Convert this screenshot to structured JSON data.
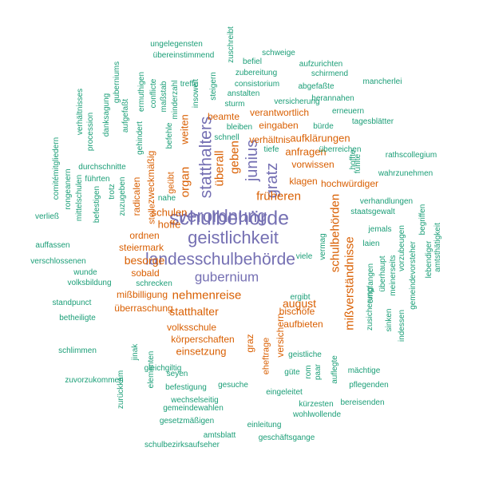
{
  "palette": {
    "teal": "#1b9e77",
    "orange": "#d95f02",
    "purple": "#7570b3"
  },
  "words": [
    {
      "text": "schulbehörde",
      "color": "purple"
    },
    {
      "text": "geistlichkeit",
      "color": "purple"
    },
    {
      "text": "landesschulbehörde",
      "color": "purple"
    },
    {
      "text": "verordnung",
      "color": "purple"
    },
    {
      "text": "gubernium",
      "color": "purple"
    },
    {
      "text": "statthalters",
      "color": "purple"
    },
    {
      "text": "junius",
      "color": "purple"
    },
    {
      "text": "gratz",
      "color": "purple"
    },
    {
      "text": "überall",
      "color": "orange"
    },
    {
      "text": "geben",
      "color": "orange"
    },
    {
      "text": "organ",
      "color": "orange"
    },
    {
      "text": "weiten",
      "color": "orange"
    },
    {
      "text": "früheren",
      "color": "orange"
    },
    {
      "text": "schulbehörden",
      "color": "orange"
    },
    {
      "text": "mißverständnisse",
      "color": "orange"
    },
    {
      "text": "schulen",
      "color": "orange"
    },
    {
      "text": "hoffe",
      "color": "orange"
    },
    {
      "text": "besorge",
      "color": "orange"
    },
    {
      "text": "steiermark",
      "color": "orange"
    },
    {
      "text": "ordnen",
      "color": "orange"
    },
    {
      "text": "nehmenreise",
      "color": "orange"
    },
    {
      "text": "august",
      "color": "orange"
    },
    {
      "text": "statthalter",
      "color": "orange"
    },
    {
      "text": "mißbilligung",
      "color": "orange"
    },
    {
      "text": "überraschung",
      "color": "orange"
    },
    {
      "text": "sobald",
      "color": "orange"
    },
    {
      "text": "volksschule",
      "color": "orange"
    },
    {
      "text": "körperschaften",
      "color": "orange"
    },
    {
      "text": "einsetzung",
      "color": "orange"
    },
    {
      "text": "aufbieten",
      "color": "orange"
    },
    {
      "text": "bischöfe",
      "color": "orange"
    },
    {
      "text": "verantwortlich",
      "color": "orange"
    },
    {
      "text": "beamte",
      "color": "orange"
    },
    {
      "text": "verhältnis",
      "color": "orange"
    },
    {
      "text": "eingaben",
      "color": "orange"
    },
    {
      "text": "aufklärungen",
      "color": "orange"
    },
    {
      "text": "anfragen",
      "color": "orange"
    },
    {
      "text": "vorwissen",
      "color": "orange"
    },
    {
      "text": "klagen",
      "color": "orange"
    },
    {
      "text": "hochwürdiger",
      "color": "orange"
    },
    {
      "text": "zweckmäßig",
      "color": "orange"
    },
    {
      "text": "radicalen",
      "color": "orange"
    },
    {
      "text": "stelle",
      "color": "orange"
    },
    {
      "text": "geübt",
      "color": "orange"
    },
    {
      "text": "graz",
      "color": "orange"
    },
    {
      "text": "eheftrage",
      "color": "orange"
    },
    {
      "text": "versichern",
      "color": "orange"
    },
    {
      "text": "ungelegensten",
      "color": "teal"
    },
    {
      "text": "übereinstimmend",
      "color": "teal"
    },
    {
      "text": "zuschreibt",
      "color": "teal"
    },
    {
      "text": "schweige",
      "color": "teal"
    },
    {
      "text": "befiel",
      "color": "teal"
    },
    {
      "text": "aufzurichten",
      "color": "teal"
    },
    {
      "text": "zubereitung",
      "color": "teal"
    },
    {
      "text": "schirmend",
      "color": "teal"
    },
    {
      "text": "consistorium",
      "color": "teal"
    },
    {
      "text": "abgefaßte",
      "color": "teal"
    },
    {
      "text": "mancherlei",
      "color": "teal"
    },
    {
      "text": "anstalten",
      "color": "teal"
    },
    {
      "text": "sturm",
      "color": "teal"
    },
    {
      "text": "versicherung",
      "color": "teal"
    },
    {
      "text": "herannahen",
      "color": "teal"
    },
    {
      "text": "erneuern",
      "color": "teal"
    },
    {
      "text": "tagesblätter",
      "color": "teal"
    },
    {
      "text": "bürde",
      "color": "teal"
    },
    {
      "text": "bleiben",
      "color": "teal"
    },
    {
      "text": "schnell",
      "color": "teal"
    },
    {
      "text": "tiefe",
      "color": "teal"
    },
    {
      "text": "überreichen",
      "color": "teal"
    },
    {
      "text": "rathscollegium",
      "color": "teal"
    },
    {
      "text": "hoffte",
      "color": "teal"
    },
    {
      "text": "wahrzunehmen",
      "color": "teal"
    },
    {
      "text": "verhandlungen",
      "color": "teal"
    },
    {
      "text": "staatsgewalt",
      "color": "teal"
    },
    {
      "text": "jemals",
      "color": "teal"
    },
    {
      "text": "laien",
      "color": "teal"
    },
    {
      "text": "viele",
      "color": "teal"
    },
    {
      "text": "ergibt",
      "color": "teal"
    },
    {
      "text": "geistliche",
      "color": "teal"
    },
    {
      "text": "güte",
      "color": "teal"
    },
    {
      "text": "mächtige",
      "color": "teal"
    },
    {
      "text": "pflegenden",
      "color": "teal"
    },
    {
      "text": "eingeleitet",
      "color": "teal"
    },
    {
      "text": "kürzesten",
      "color": "teal"
    },
    {
      "text": "bereisenden",
      "color": "teal"
    },
    {
      "text": "wohlwollende",
      "color": "teal"
    },
    {
      "text": "gemeindewahlen",
      "color": "teal"
    },
    {
      "text": "einleitung",
      "color": "teal"
    },
    {
      "text": "gesetzmäßigen",
      "color": "teal"
    },
    {
      "text": "amtsblatt",
      "color": "teal"
    },
    {
      "text": "geschäftsgange",
      "color": "teal"
    },
    {
      "text": "schulbezirksaufseher",
      "color": "teal"
    },
    {
      "text": "wechselseitig",
      "color": "teal"
    },
    {
      "text": "befestigung",
      "color": "teal"
    },
    {
      "text": "gesuche",
      "color": "teal"
    },
    {
      "text": "seyen",
      "color": "teal"
    },
    {
      "text": "gleichgiltig",
      "color": "teal"
    },
    {
      "text": "zuvorzukommen",
      "color": "teal"
    },
    {
      "text": "schlimmen",
      "color": "teal"
    },
    {
      "text": "betheiligte",
      "color": "teal"
    },
    {
      "text": "standpunct",
      "color": "teal"
    },
    {
      "text": "schrecken",
      "color": "teal"
    },
    {
      "text": "volksbildung",
      "color": "teal"
    },
    {
      "text": "wunde",
      "color": "teal"
    },
    {
      "text": "verschlossenen",
      "color": "teal"
    },
    {
      "text": "auffassen",
      "color": "teal"
    },
    {
      "text": "verließ",
      "color": "teal"
    },
    {
      "text": "durchschnitte",
      "color": "teal"
    },
    {
      "text": "führten",
      "color": "teal"
    },
    {
      "text": "nahe",
      "color": "teal"
    },
    {
      "text": "insoweit",
      "color": "teal"
    },
    {
      "text": "treffe",
      "color": "teal"
    },
    {
      "text": "befehle",
      "color": "teal"
    },
    {
      "text": "conflicte",
      "color": "teal"
    },
    {
      "text": "maßstab",
      "color": "teal"
    },
    {
      "text": "minderzahl",
      "color": "teal"
    },
    {
      "text": "ermuthigen",
      "color": "teal"
    },
    {
      "text": "gehindert",
      "color": "teal"
    },
    {
      "text": "aufgefaßt",
      "color": "teal"
    },
    {
      "text": "guberniums",
      "color": "teal"
    },
    {
      "text": "danksagung",
      "color": "teal"
    },
    {
      "text": "verhältnisses",
      "color": "teal"
    },
    {
      "text": "procession",
      "color": "teal"
    },
    {
      "text": "comitémitgliedern",
      "color": "teal"
    },
    {
      "text": "rongeanern",
      "color": "teal"
    },
    {
      "text": "mittelschulen",
      "color": "teal"
    },
    {
      "text": "befestigen",
      "color": "teal"
    },
    {
      "text": "trotz",
      "color": "teal"
    },
    {
      "text": "zuzugeben",
      "color": "teal"
    },
    {
      "text": "steigern",
      "color": "teal"
    },
    {
      "text": "fühlte",
      "color": "teal"
    },
    {
      "text": "begriffen",
      "color": "teal"
    },
    {
      "text": "amtsthätigkeit",
      "color": "teal"
    },
    {
      "text": "lebendiger",
      "color": "teal"
    },
    {
      "text": "gemeindevorsteher",
      "color": "teal"
    },
    {
      "text": "vorzubeugen",
      "color": "teal"
    },
    {
      "text": "meinerseits",
      "color": "teal"
    },
    {
      "text": "überhaupt",
      "color": "teal"
    },
    {
      "text": "empfangen",
      "color": "teal"
    },
    {
      "text": "zusicherung",
      "color": "teal"
    },
    {
      "text": "sinken",
      "color": "teal"
    },
    {
      "text": "indessen",
      "color": "teal"
    },
    {
      "text": "vermag",
      "color": "teal"
    },
    {
      "text": "auflegte",
      "color": "teal"
    },
    {
      "text": "paar",
      "color": "teal"
    },
    {
      "text": "rom",
      "color": "teal"
    },
    {
      "text": "elementen",
      "color": "teal"
    },
    {
      "text": "jinak",
      "color": "teal"
    },
    {
      "text": "zurückkam",
      "color": "teal"
    }
  ]
}
